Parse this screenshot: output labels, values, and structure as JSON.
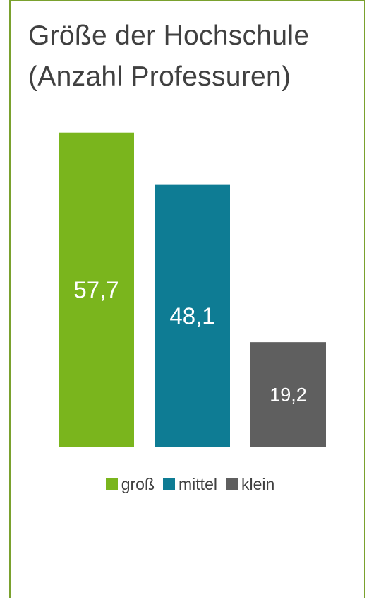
{
  "title_line1": "Größe der Hochschule",
  "title_line2": "(Anzahl Professuren)",
  "colors": {
    "frame": "#7aa12e",
    "gross": "#7ab51d",
    "mittel": "#0e7c94",
    "klein": "#5f5f5f"
  },
  "chart_data": {
    "type": "bar",
    "categories": [
      "groß",
      "mittel",
      "klein"
    ],
    "values": [
      57.7,
      48.1,
      19.2
    ],
    "value_labels": [
      "57,7",
      "48,1",
      "19,2"
    ],
    "colors": [
      "#7ab51d",
      "#0e7c94",
      "#5f5f5f"
    ],
    "title": "Größe der Hochschule (Anzahl Professuren)",
    "xlabel": "",
    "ylabel": "",
    "ylim": [
      0,
      60
    ],
    "grid": false,
    "legend": "bottom"
  },
  "legend": [
    {
      "label": "groß",
      "color": "#7ab51d"
    },
    {
      "label": "mittel",
      "color": "#0e7c94"
    },
    {
      "label": "klein",
      "color": "#5f5f5f"
    }
  ]
}
